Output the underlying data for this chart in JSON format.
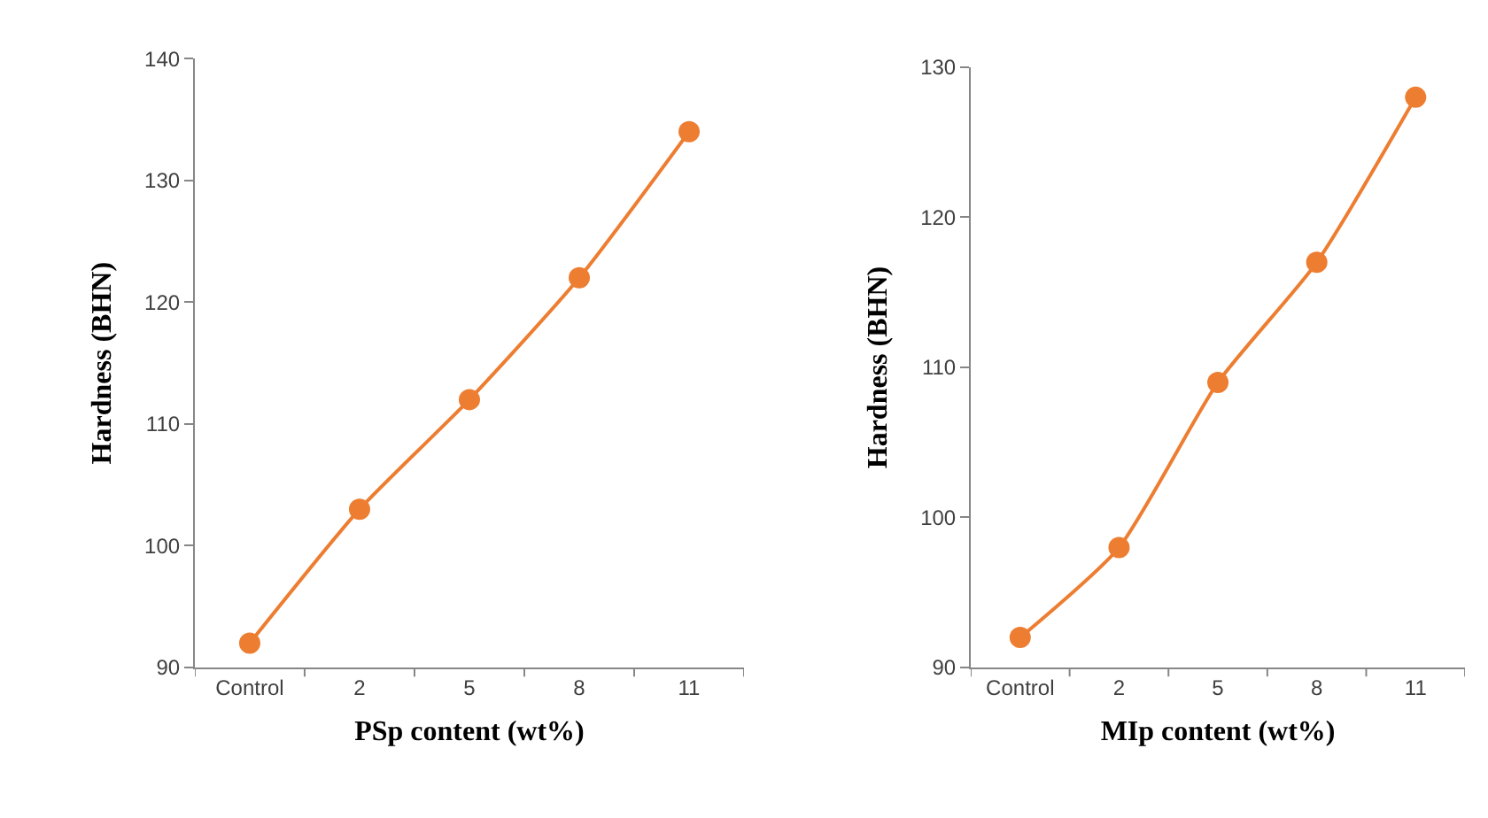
{
  "chart_data": [
    {
      "type": "line",
      "categories": [
        "Control",
        "2",
        "5",
        "8",
        "11"
      ],
      "values": [
        92,
        103,
        112,
        122,
        134
      ],
      "color": "#ed7d31",
      "xlabel": "PSp content (wt%)",
      "ylabel": "Hardness (BHN)",
      "ylim": [
        90,
        140
      ],
      "yticks": [
        90,
        100,
        110,
        120,
        130,
        140
      ],
      "marker": "circle",
      "line_style": "solid",
      "grid": false
    },
    {
      "type": "line",
      "categories": [
        "Control",
        "2",
        "5",
        "8",
        "11"
      ],
      "values": [
        92,
        98,
        109,
        117,
        128
      ],
      "color": "#ed7d31",
      "xlabel": "MIp content (wt%)",
      "ylabel": "Hardness (BHN)",
      "ylim": [
        90,
        130
      ],
      "yticks": [
        90,
        100,
        110,
        120,
        130
      ],
      "marker": "circle",
      "line_style": "solid",
      "grid": false
    }
  ]
}
